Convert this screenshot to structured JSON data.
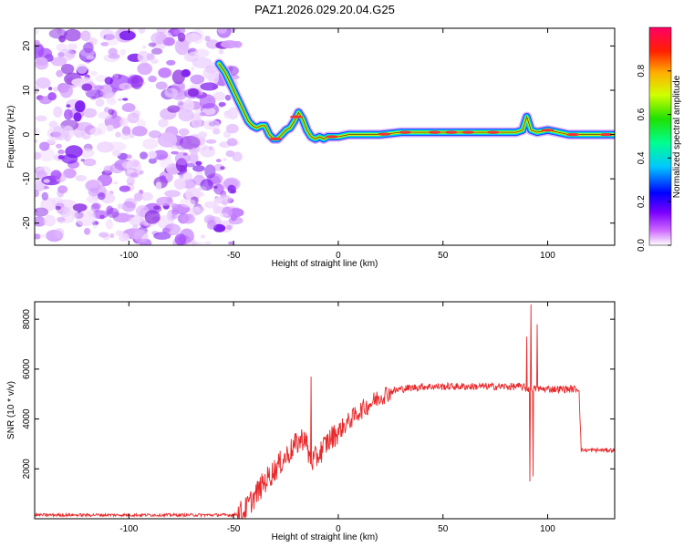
{
  "title": "PAZ1.2026.029.20.04.G25",
  "colors": {
    "snr_line": "#e8282a",
    "blob": "#8a2be2",
    "track_core": "#ff3030"
  },
  "chart_data": [
    {
      "type": "heatmap",
      "name": "spectrogram",
      "xlabel": "Height of straight line (km)",
      "ylabel": "Frequency (Hz)",
      "xlim": [
        -145,
        132
      ],
      "ylim": [
        -25,
        24
      ],
      "xticks": [
        -100,
        -50,
        0,
        50,
        100
      ],
      "xtick_labels": [
        "-100",
        "-50",
        "0",
        "50",
        "100"
      ],
      "yticks": [
        20,
        10,
        0,
        -10,
        -20
      ],
      "ytick_labels": [
        "20",
        "10",
        "0",
        "-10",
        "-20"
      ],
      "noise_region_x": [
        -145,
        -48
      ],
      "track": {
        "x": [
          -57,
          -54,
          -51,
          -49,
          -47,
          -45,
          -43,
          -41,
          -39,
          -37,
          -35,
          -33,
          -31,
          -29,
          -27,
          -25,
          -23,
          -21,
          -19,
          -17,
          -15,
          -13,
          -11,
          -9,
          -7,
          -5,
          0,
          5,
          10,
          20,
          30,
          40,
          50,
          60,
          70,
          80,
          85,
          88,
          90,
          92,
          95,
          100,
          105,
          110,
          120,
          132
        ],
        "y": [
          16,
          14,
          11,
          9,
          7,
          5,
          3,
          2,
          1.5,
          2,
          2,
          0,
          -1,
          -1,
          0,
          1,
          1.5,
          3,
          5,
          3.5,
          1,
          -0.5,
          -1,
          -0.5,
          -1,
          -0.5,
          -0.5,
          0,
          0,
          0,
          0.5,
          0.5,
          0.5,
          0.5,
          0.5,
          0.5,
          0.5,
          1,
          4,
          1,
          0.5,
          1,
          0.5,
          0,
          0,
          0
        ]
      },
      "colorbar": {
        "label": "Normalized spectral amplitude",
        "range": [
          0,
          1
        ],
        "ticks": [
          0.0,
          0.2,
          0.4,
          0.6,
          0.8
        ],
        "tick_labels": [
          "0.0",
          "0.2",
          "0.4",
          "0.6",
          "0.8"
        ]
      }
    },
    {
      "type": "line",
      "name": "snr",
      "xlabel": "Height of straight line (km)",
      "ylabel": "SNR (10 * v/v)",
      "xlim": [
        -145,
        132
      ],
      "ylim": [
        0,
        8700
      ],
      "xticks": [
        -100,
        -50,
        0,
        50,
        100
      ],
      "xtick_labels": [
        "-100",
        "-50",
        "0",
        "50",
        "100"
      ],
      "yticks": [
        2000,
        4000,
        6000,
        8000
      ],
      "ytick_labels": [
        "2000",
        "4000",
        "6000",
        "8000"
      ],
      "envelope": {
        "x": [
          -145,
          -50,
          -45,
          -40,
          -35,
          -30,
          -25,
          -20,
          -16,
          -14,
          -12,
          -10,
          -5,
          0,
          5,
          10,
          15,
          20,
          25,
          30,
          40,
          50,
          60,
          70,
          80,
          85,
          88,
          90,
          92,
          94,
          96,
          100,
          105,
          110,
          115,
          116,
          117,
          120,
          125,
          132
        ],
        "y": [
          150,
          150,
          300,
          900,
          1500,
          2000,
          2500,
          3000,
          3300,
          2500,
          2300,
          2500,
          3100,
          3500,
          3900,
          4300,
          4600,
          4900,
          5100,
          5200,
          5300,
          5300,
          5300,
          5300,
          5300,
          5300,
          5300,
          5200,
          5200,
          5200,
          5200,
          5200,
          5200,
          5200,
          5200,
          2750,
          2750,
          2750,
          2750,
          2750
        ]
      },
      "spikes": [
        {
          "x": -13,
          "y": 5700
        },
        {
          "x": 90,
          "y": 7300
        },
        {
          "x": 91.5,
          "y": 1500
        },
        {
          "x": 92,
          "y": 8600
        },
        {
          "x": 93,
          "y": 1700
        },
        {
          "x": 95,
          "y": 7800
        }
      ]
    }
  ]
}
